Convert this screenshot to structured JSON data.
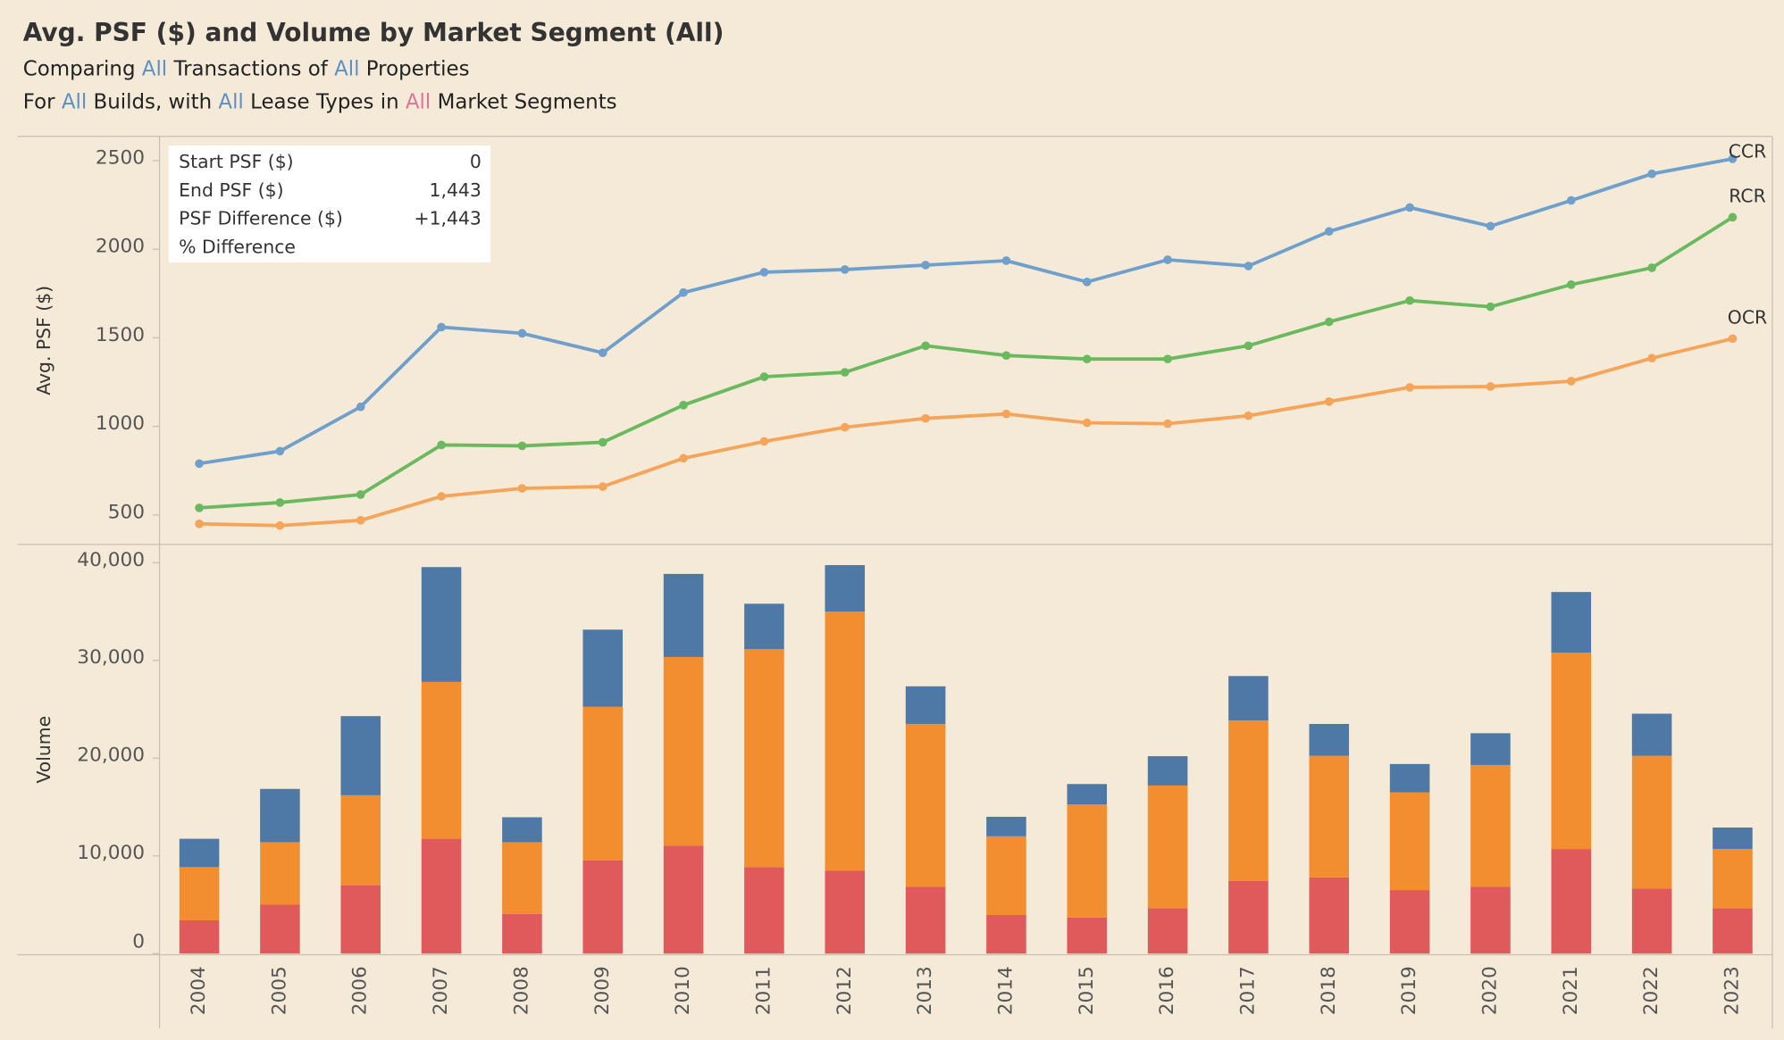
{
  "header": {
    "title": "Avg. PSF ($) and Volume by Market Segment (All)",
    "lines": [
      [
        {
          "text": "Comparing "
        },
        {
          "text": "All",
          "color": "#5b8fc7"
        },
        {
          "text": " Transactions of "
        },
        {
          "text": "All",
          "color": "#5b8fc7"
        },
        {
          "text": " Properties"
        }
      ],
      [
        {
          "text": "For "
        },
        {
          "text": "All",
          "color": "#5b8fc7"
        },
        {
          "text": " Builds, with "
        },
        {
          "text": "All",
          "color": "#5b8fc7"
        },
        {
          "text": " Lease Types in "
        },
        {
          "text": "All",
          "color": "#e0739a"
        },
        {
          "text": " Market Segments"
        }
      ]
    ]
  },
  "summary": {
    "value_color": "#2e7d3a",
    "rows": [
      {
        "label": "Start PSF ($)",
        "value": "0"
      },
      {
        "label": "End PSF ($)",
        "value": "1,443"
      },
      {
        "label": "PSF Difference ($)",
        "value": "+1,443"
      },
      {
        "label": "% Difference"
      }
    ]
  },
  "chart_data": [
    {
      "type": "line",
      "y_label": "Avg. PSF ($)",
      "ylim": [
        340,
        2630
      ],
      "yticks": [
        500,
        1000,
        1500,
        2000,
        2500
      ],
      "series": [
        {
          "name": "CCR",
          "color": "#6f9fcb",
          "values": [
            790,
            860,
            1110,
            1560,
            1525,
            1415,
            1755,
            1870,
            1885,
            1910,
            1935,
            1815,
            1940,
            1905,
            2100,
            2235,
            2130,
            2275,
            2425,
            2510
          ]
        },
        {
          "name": "RCR",
          "color": "#6ab95e",
          "values": [
            540,
            570,
            615,
            895,
            890,
            910,
            1120,
            1280,
            1305,
            1455,
            1400,
            1380,
            1380,
            1455,
            1590,
            1710,
            1675,
            1800,
            1895,
            2180
          ]
        },
        {
          "name": "OCR",
          "color": "#f5a55a",
          "values": [
            450,
            440,
            470,
            605,
            650,
            660,
            820,
            915,
            995,
            1045,
            1070,
            1020,
            1015,
            1060,
            1140,
            1220,
            1225,
            1255,
            1385,
            1495
          ]
        }
      ]
    },
    {
      "type": "stacked_bar",
      "y_label": "Volume",
      "ylim": [
        0,
        41750
      ],
      "yticks": [
        0,
        {
          "value": 10000,
          "label": "10,000"
        },
        {
          "value": 20000,
          "label": "20,000"
        },
        {
          "value": 30000,
          "label": "30,000"
        },
        {
          "value": 40000,
          "label": "40,000"
        }
      ],
      "categories": [
        "2004",
        "2005",
        "2006",
        "2007",
        "2008",
        "2009",
        "2010",
        "2011",
        "2012",
        "2013",
        "2014",
        "2015",
        "2016",
        "2017",
        "2018",
        "2019",
        "2020",
        "2021",
        "2022",
        "2023"
      ],
      "series": [
        {
          "color": "#e05a5b",
          "values": [
            3400,
            5000,
            7000,
            11750,
            4050,
            9550,
            11050,
            8850,
            8500,
            6850,
            3950,
            3700,
            4650,
            7450,
            7800,
            6500,
            6850,
            10700,
            6650,
            4650
          ]
        },
        {
          "color": "#f28e2f",
          "values": [
            5450,
            6400,
            9200,
            16050,
            7350,
            15700,
            19300,
            22300,
            26500,
            16650,
            8050,
            11550,
            12550,
            16400,
            12450,
            10000,
            12450,
            20100,
            13600,
            6050
          ]
        },
        {
          "color": "#4e79a7",
          "values": [
            2900,
            5450,
            8100,
            11750,
            2550,
            7900,
            8500,
            4650,
            4750,
            3850,
            2000,
            2100,
            3000,
            4550,
            3250,
            2900,
            3250,
            6200,
            4300,
            2200
          ]
        }
      ]
    }
  ]
}
